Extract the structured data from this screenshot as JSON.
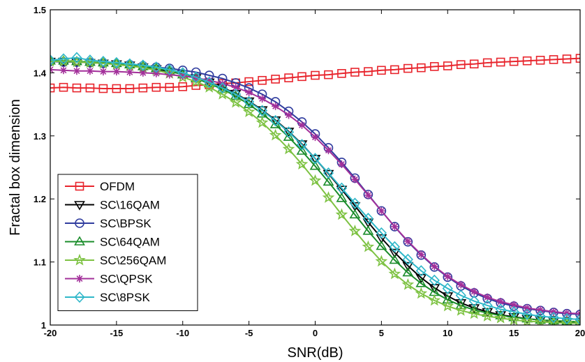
{
  "chart_data": {
    "type": "line",
    "title": "",
    "xlabel": "SNR(dB)",
    "ylabel": "Fractal box dimension",
    "xlim": [
      -20,
      20
    ],
    "ylim": [
      1,
      1.5
    ],
    "xticks": [
      -20,
      -15,
      -10,
      -5,
      0,
      5,
      10,
      15,
      20
    ],
    "xtick_labels": [
      "-20",
      "-15",
      "-10",
      "-5",
      "0",
      "5",
      "10",
      "15",
      "20"
    ],
    "yticks": [
      1,
      1.1,
      1.2,
      1.3,
      1.4,
      1.5
    ],
    "ytick_labels": [
      "1",
      "1.1",
      "1.2",
      "1.3",
      "1.4",
      "1.5"
    ],
    "grid": false,
    "legend_position": "bottom-left",
    "x": [
      -20,
      -19,
      -18,
      -17,
      -16,
      -15,
      -14,
      -13,
      -12,
      -11,
      -10,
      -9,
      -8,
      -7,
      -6,
      -5,
      -4,
      -3,
      -2,
      -1,
      0,
      1,
      2,
      3,
      4,
      5,
      6,
      7,
      8,
      9,
      10,
      11,
      12,
      13,
      14,
      15,
      16,
      17,
      18,
      19,
      20
    ],
    "series": [
      {
        "name": "OFDM",
        "color": "#e8242c",
        "marker": "square",
        "values": [
          1.376,
          1.377,
          1.376,
          1.376,
          1.375,
          1.375,
          1.375,
          1.376,
          1.377,
          1.377,
          1.378,
          1.38,
          1.381,
          1.383,
          1.384,
          1.386,
          1.388,
          1.39,
          1.392,
          1.394,
          1.396,
          1.397,
          1.399,
          1.401,
          1.402,
          1.404,
          1.405,
          1.407,
          1.408,
          1.41,
          1.411,
          1.413,
          1.414,
          1.416,
          1.417,
          1.418,
          1.419,
          1.42,
          1.421,
          1.422,
          1.423
        ]
      },
      {
        "name": "SC\\16QAM",
        "color": "#000000",
        "marker": "triangle-down",
        "values": [
          1.418,
          1.418,
          1.417,
          1.416,
          1.415,
          1.414,
          1.412,
          1.409,
          1.406,
          1.402,
          1.398,
          1.392,
          1.385,
          1.377,
          1.367,
          1.355,
          1.341,
          1.325,
          1.307,
          1.287,
          1.264,
          1.24,
          1.215,
          1.189,
          1.163,
          1.138,
          1.115,
          1.094,
          1.075,
          1.059,
          1.046,
          1.035,
          1.027,
          1.021,
          1.016,
          1.013,
          1.01,
          1.008,
          1.006,
          1.005,
          1.004
        ]
      },
      {
        "name": "SC\\BPSK",
        "color": "#2f3c9e",
        "marker": "circle",
        "values": [
          1.418,
          1.417,
          1.417,
          1.416,
          1.415,
          1.414,
          1.413,
          1.411,
          1.409,
          1.407,
          1.404,
          1.401,
          1.396,
          1.391,
          1.384,
          1.376,
          1.366,
          1.354,
          1.339,
          1.322,
          1.303,
          1.281,
          1.258,
          1.233,
          1.207,
          1.181,
          1.156,
          1.132,
          1.111,
          1.092,
          1.076,
          1.062,
          1.051,
          1.042,
          1.035,
          1.03,
          1.026,
          1.023,
          1.02,
          1.018,
          1.017
        ]
      },
      {
        "name": "SC\\64QAM",
        "color": "#1a8c2a",
        "marker": "triangle-up",
        "values": [
          1.419,
          1.419,
          1.418,
          1.417,
          1.416,
          1.415,
          1.413,
          1.41,
          1.407,
          1.403,
          1.397,
          1.391,
          1.383,
          1.374,
          1.363,
          1.35,
          1.335,
          1.318,
          1.298,
          1.276,
          1.252,
          1.227,
          1.201,
          1.175,
          1.149,
          1.125,
          1.103,
          1.083,
          1.066,
          1.052,
          1.04,
          1.031,
          1.024,
          1.019,
          1.015,
          1.012,
          1.01,
          1.008,
          1.007,
          1.006,
          1.005
        ]
      },
      {
        "name": "SC\\256QAM",
        "color": "#7dc242",
        "marker": "star",
        "values": [
          1.418,
          1.418,
          1.417,
          1.416,
          1.415,
          1.413,
          1.411,
          1.408,
          1.404,
          1.399,
          1.393,
          1.386,
          1.377,
          1.366,
          1.353,
          1.338,
          1.321,
          1.301,
          1.279,
          1.255,
          1.229,
          1.202,
          1.175,
          1.149,
          1.124,
          1.101,
          1.081,
          1.064,
          1.05,
          1.039,
          1.03,
          1.023,
          1.018,
          1.014,
          1.011,
          1.008,
          1.006,
          1.005,
          1.004,
          1.003,
          1.003
        ]
      },
      {
        "name": "SC\\QPSK",
        "color": "#a3309a",
        "marker": "asterisk",
        "values": [
          1.405,
          1.404,
          1.403,
          1.403,
          1.402,
          1.402,
          1.401,
          1.4,
          1.399,
          1.397,
          1.395,
          1.392,
          1.388,
          1.383,
          1.377,
          1.369,
          1.359,
          1.347,
          1.333,
          1.317,
          1.298,
          1.277,
          1.255,
          1.231,
          1.206,
          1.181,
          1.156,
          1.133,
          1.112,
          1.093,
          1.077,
          1.064,
          1.053,
          1.044,
          1.037,
          1.032,
          1.027,
          1.024,
          1.021,
          1.019,
          1.018
        ]
      },
      {
        "name": "SC\\8PSK",
        "color": "#2fb7c9",
        "marker": "diamond",
        "values": [
          1.42,
          1.422,
          1.424,
          1.42,
          1.418,
          1.416,
          1.414,
          1.412,
          1.409,
          1.405,
          1.4,
          1.393,
          1.385,
          1.376,
          1.366,
          1.354,
          1.34,
          1.324,
          1.306,
          1.286,
          1.264,
          1.241,
          1.217,
          1.193,
          1.169,
          1.146,
          1.124,
          1.104,
          1.086,
          1.071,
          1.058,
          1.047,
          1.038,
          1.031,
          1.025,
          1.021,
          1.017,
          1.014,
          1.012,
          1.01,
          1.009
        ]
      }
    ]
  }
}
